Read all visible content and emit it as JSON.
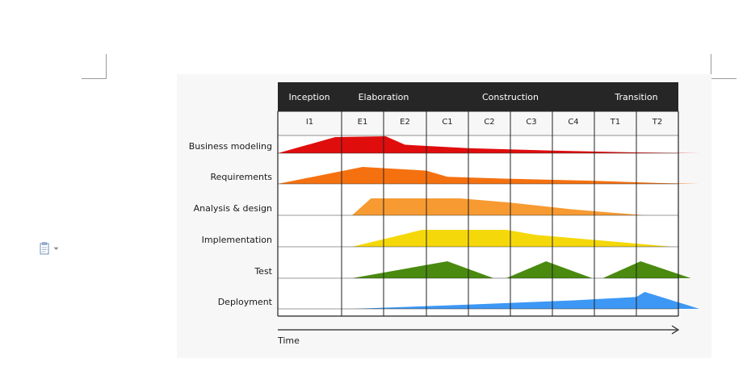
{
  "phases": [
    "Inception",
    "Elaboration",
    "Construction",
    "Transition"
  ],
  "iterations": [
    "I1",
    "E1",
    "E2",
    "C1",
    "C2",
    "C3",
    "C4",
    "T1",
    "T2"
  ],
  "disciplines": [
    {
      "label": "Business modeling",
      "color": "#e00d0d",
      "profile": [
        [
          0,
          0
        ],
        [
          0.9,
          0.95
        ],
        [
          2.05,
          1
        ],
        [
          2.5,
          0.5
        ],
        [
          4,
          0.3
        ],
        [
          6,
          0.15
        ],
        [
          8,
          0.05
        ],
        [
          9.5,
          0
        ]
      ]
    },
    {
      "label": "Requirements",
      "color": "#f57110",
      "profile": [
        [
          0,
          0
        ],
        [
          1.5,
          1
        ],
        [
          3,
          0.78
        ],
        [
          3.5,
          0.42
        ],
        [
          5,
          0.3
        ],
        [
          7,
          0.18
        ],
        [
          8.5,
          0.05
        ],
        [
          9.5,
          0
        ]
      ]
    },
    {
      "label": "Analysis & design",
      "color": "#f79a32",
      "profile": [
        [
          1.25,
          0
        ],
        [
          1.7,
          1
        ],
        [
          3.8,
          1
        ],
        [
          5,
          0.75
        ],
        [
          6.5,
          0.35
        ],
        [
          8.2,
          0
        ]
      ]
    },
    {
      "label": "Implementation",
      "color": "#f5d80a",
      "profile": [
        [
          1.25,
          0
        ],
        [
          2.9,
          1
        ],
        [
          4.9,
          1
        ],
        [
          5.6,
          0.7
        ],
        [
          7.5,
          0.3
        ],
        [
          8.85,
          0
        ]
      ]
    },
    {
      "label": "Test",
      "color": "#4a8a0f",
      "profile": [
        [
          1.25,
          0
        ],
        [
          3.5,
          1
        ],
        [
          4.6,
          0
        ],
        [
          4.9,
          0
        ],
        [
          5.85,
          1
        ],
        [
          6.95,
          0
        ],
        [
          7.2,
          0
        ],
        [
          8.1,
          1
        ],
        [
          9.3,
          0
        ]
      ]
    },
    {
      "label": "Deployment",
      "color": "#3d98f5",
      "profile": [
        [
          1.25,
          0
        ],
        [
          4,
          0.25
        ],
        [
          6.5,
          0.5
        ],
        [
          8,
          0.7
        ],
        [
          8.2,
          1
        ],
        [
          9.5,
          0
        ]
      ]
    }
  ],
  "axis_label": "Time",
  "paste_icon": "paste-options-icon"
}
